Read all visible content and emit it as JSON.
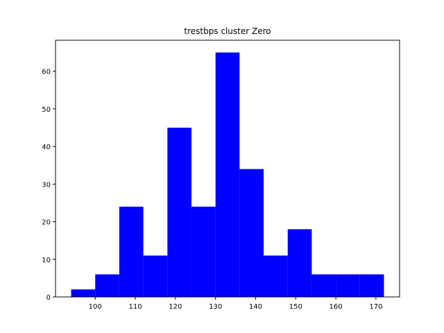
{
  "chart_data": {
    "type": "bar",
    "subtype": "histogram",
    "title": "trestbps cluster Zero",
    "xlabel": "",
    "ylabel": "",
    "bar_color": "#0000ff",
    "grid": false,
    "xlim": [
      90.1,
      175.9
    ],
    "ylim": [
      0,
      68.25
    ],
    "xticks": [
      100,
      110,
      120,
      130,
      140,
      150,
      160,
      170
    ],
    "yticks": [
      0,
      10,
      20,
      30,
      40,
      50,
      60
    ],
    "bins": [
      {
        "start": 94.0,
        "end": 100.0,
        "count": 2
      },
      {
        "start": 100.0,
        "end": 106.0,
        "count": 6
      },
      {
        "start": 106.0,
        "end": 112.0,
        "count": 24
      },
      {
        "start": 112.0,
        "end": 118.0,
        "count": 11
      },
      {
        "start": 118.0,
        "end": 124.0,
        "count": 45
      },
      {
        "start": 124.0,
        "end": 130.0,
        "count": 24
      },
      {
        "start": 130.0,
        "end": 136.0,
        "count": 65
      },
      {
        "start": 136.0,
        "end": 142.0,
        "count": 34
      },
      {
        "start": 142.0,
        "end": 148.0,
        "count": 11
      },
      {
        "start": 148.0,
        "end": 154.0,
        "count": 18
      },
      {
        "start": 154.0,
        "end": 160.0,
        "count": 6
      },
      {
        "start": 160.0,
        "end": 166.0,
        "count": 6
      },
      {
        "start": 166.0,
        "end": 172.0,
        "count": 6
      }
    ]
  }
}
